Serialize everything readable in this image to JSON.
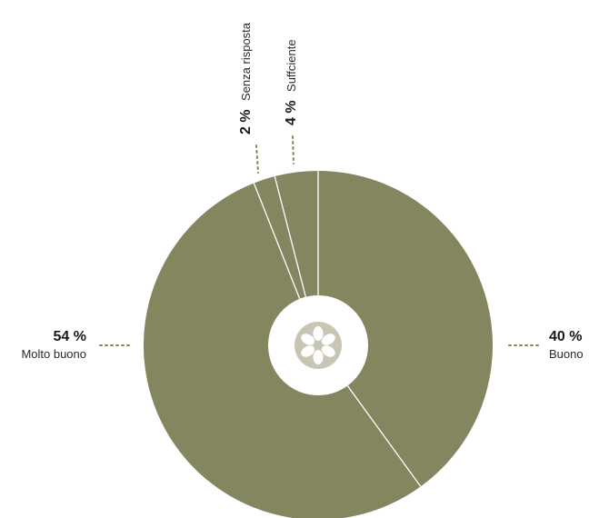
{
  "chart_data": {
    "type": "pie",
    "donut": true,
    "start": "top",
    "direction": "clockwise",
    "slices": [
      {
        "label": "Buono",
        "value": 40,
        "percent_text": "40 %"
      },
      {
        "label": "Molto buono",
        "value": 54,
        "percent_text": "54 %"
      },
      {
        "label": "Senza risposta",
        "value": 2,
        "percent_text": "2 %"
      },
      {
        "label": "Suffciente",
        "value": 4,
        "percent_text": "4 %"
      }
    ],
    "legend": "none"
  },
  "colors": {
    "slice_fill": "#848660",
    "separator": "#ffffff",
    "leader": "#848660",
    "center_icon": "#c8c5b5",
    "background": "#ffffff"
  },
  "center_icon": "flower-icon"
}
